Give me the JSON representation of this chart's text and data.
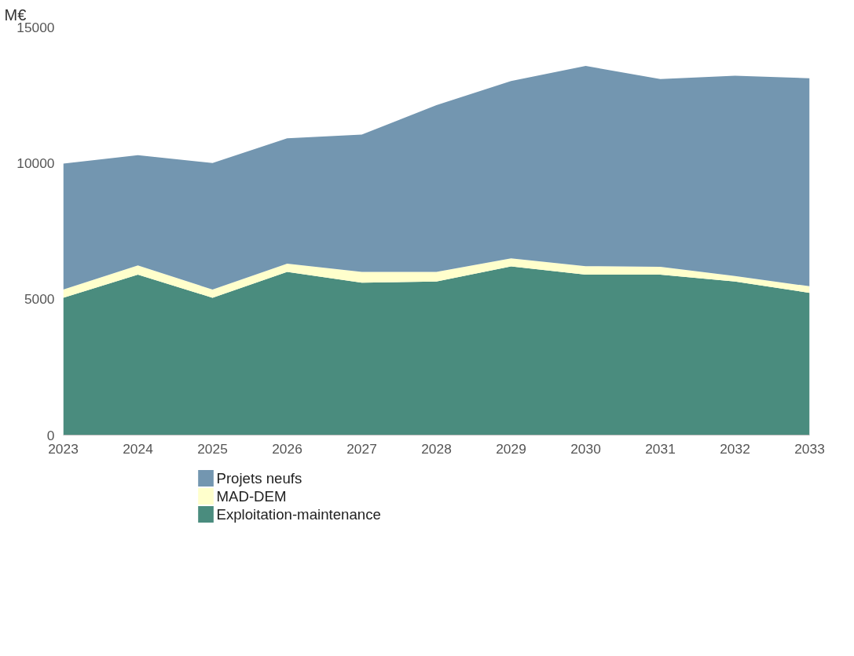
{
  "chart_data": {
    "type": "area",
    "stacked": true,
    "ylabel": "M€",
    "x": [
      2023,
      2024,
      2025,
      2026,
      2027,
      2028,
      2029,
      2030,
      2031,
      2032,
      2033
    ],
    "series": [
      {
        "name": "Exploitation-maintenance",
        "color": "#4a8c7e",
        "values": [
          5050,
          5900,
          5050,
          6000,
          5600,
          5650,
          6200,
          5900,
          5900,
          5650,
          5230
        ]
      },
      {
        "name": "MAD-DEM",
        "color": "#ffffcc",
        "values": [
          300,
          340,
          300,
          300,
          400,
          350,
          300,
          310,
          290,
          200,
          240
        ]
      },
      {
        "name": "Projets neufs",
        "color": "#7396b0",
        "values": [
          4630,
          4050,
          4650,
          4610,
          5050,
          6130,
          6520,
          7360,
          6900,
          7360,
          7650
        ]
      }
    ],
    "xlim": [
      2023,
      2033
    ],
    "xticks": [
      2023,
      2024,
      2025,
      2026,
      2027,
      2028,
      2029,
      2030,
      2031,
      2032,
      2033
    ],
    "ylim": [
      0,
      15000
    ],
    "yticks": [
      0,
      5000,
      10000,
      15000
    ],
    "grid": false,
    "legend": "bottom"
  }
}
